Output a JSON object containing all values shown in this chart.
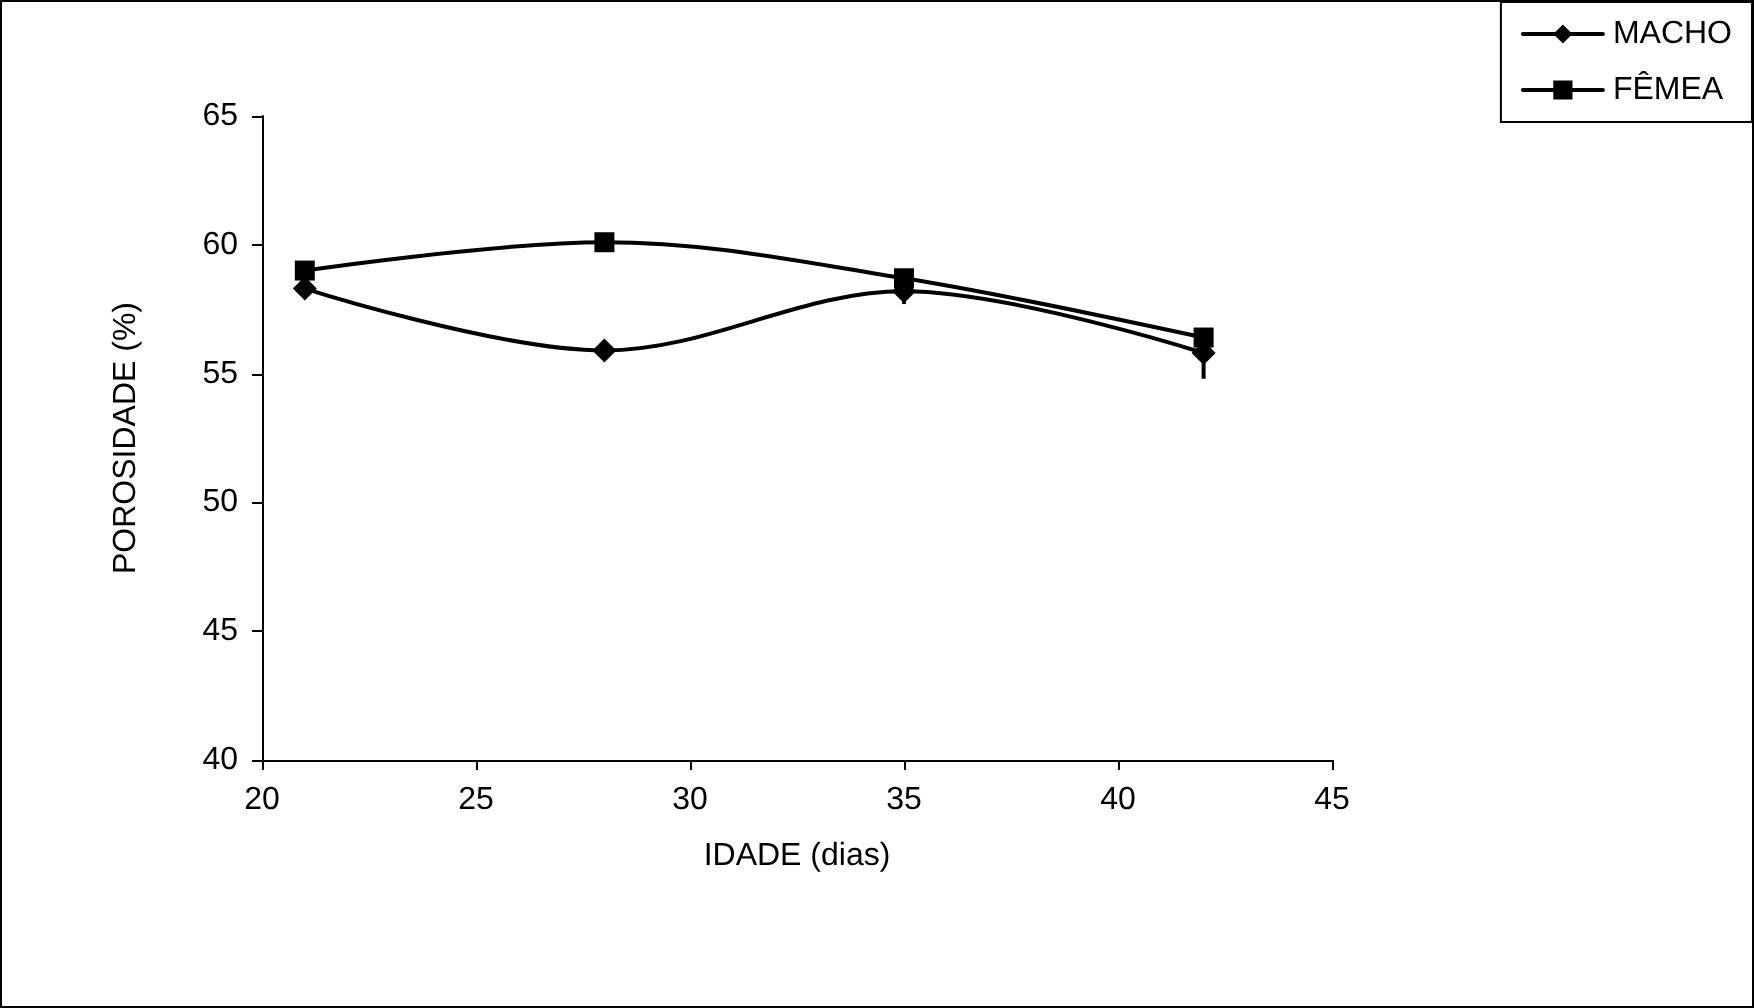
{
  "chart_data": {
    "type": "line",
    "xlabel": "IDADE (dias)",
    "ylabel": "POROSIDADE (%)",
    "x": [
      21,
      28,
      35,
      42
    ],
    "series": [
      {
        "name": "MACHO",
        "color": "#000000",
        "marker": "diamond",
        "values": [
          58.3,
          55.9,
          58.2,
          55.8
        ],
        "errors": [
          null,
          null,
          [
            57.7,
            58.2
          ],
          [
            54.8,
            55.8
          ]
        ]
      },
      {
        "name": "FÊMEA",
        "color": "#000000",
        "marker": "square",
        "values": [
          59.0,
          60.1,
          58.7,
          56.4
        ]
      }
    ],
    "xlim": [
      20,
      45
    ],
    "xticks": [
      20,
      25,
      30,
      35,
      40,
      45
    ],
    "ylim": [
      40,
      65
    ],
    "yticks": [
      40,
      45,
      50,
      55,
      60,
      65
    ],
    "grid": false,
    "legend": "top right",
    "line_style": "solid"
  }
}
